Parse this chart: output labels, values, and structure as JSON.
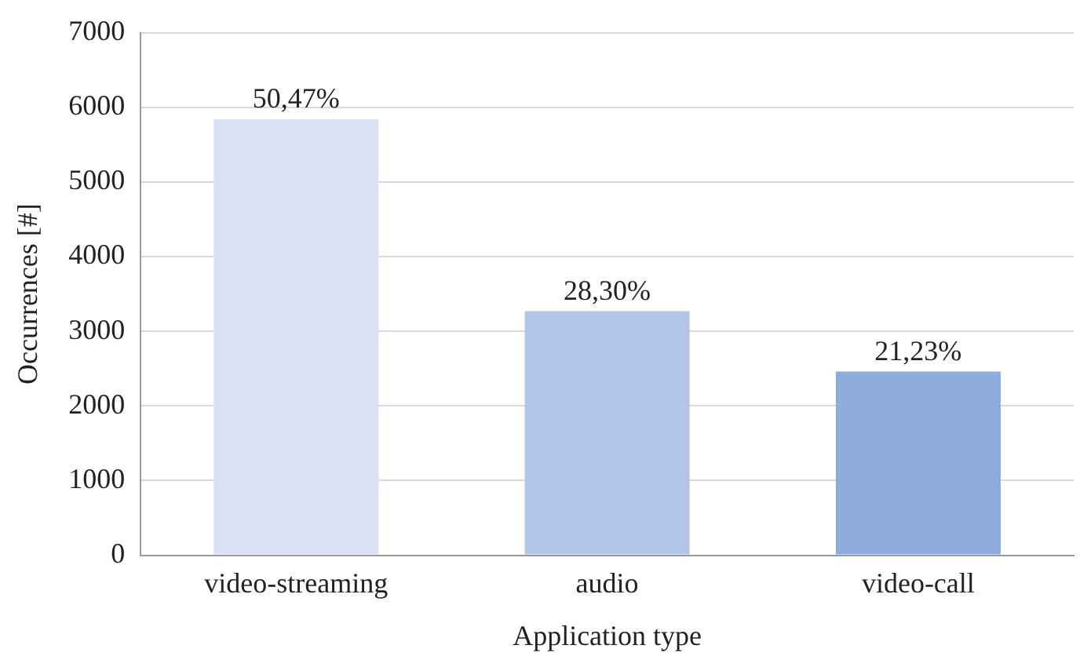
{
  "chart_data": {
    "type": "bar",
    "xlabel": "Application type",
    "ylabel": "Occurrences [#]",
    "categories": [
      "video-streaming",
      "audio",
      "video-call"
    ],
    "values": [
      5840,
      3270,
      2460
    ],
    "colors": [
      "#d9e1f2",
      "#b4c6e7",
      "#8faadc"
    ],
    "annotations": [
      {
        "text": "50,47%",
        "x": "video-streaming",
        "y": 5840
      },
      {
        "text": "28,30%",
        "x": "audio",
        "y": 3270
      },
      {
        "text": "21,23%",
        "x": "video-call",
        "y": 2460
      }
    ],
    "ylim": [
      0,
      7000
    ],
    "yticks": [
      0,
      1000,
      2000,
      3000,
      4000,
      5000,
      6000,
      7000
    ],
    "grid": "y",
    "legend": false
  }
}
